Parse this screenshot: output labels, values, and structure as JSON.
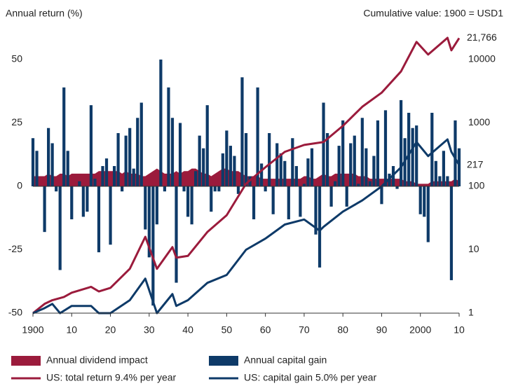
{
  "chart_data": {
    "type": "combo",
    "y_label": "Annual return (%)",
    "y2_label": "Cumulative value: 1900 = USD1",
    "x": [
      1900,
      1901,
      1902,
      1903,
      1904,
      1905,
      1906,
      1907,
      1908,
      1909,
      1910,
      1911,
      1912,
      1913,
      1914,
      1915,
      1916,
      1917,
      1918,
      1919,
      1920,
      1921,
      1922,
      1923,
      1924,
      1925,
      1926,
      1927,
      1928,
      1929,
      1930,
      1931,
      1932,
      1933,
      1934,
      1935,
      1936,
      1937,
      1938,
      1939,
      1940,
      1941,
      1942,
      1943,
      1944,
      1945,
      1946,
      1947,
      1948,
      1949,
      1950,
      1951,
      1952,
      1953,
      1954,
      1955,
      1956,
      1957,
      1958,
      1959,
      1960,
      1961,
      1962,
      1963,
      1964,
      1965,
      1966,
      1967,
      1968,
      1969,
      1970,
      1971,
      1972,
      1973,
      1974,
      1975,
      1976,
      1977,
      1978,
      1979,
      1980,
      1981,
      1982,
      1983,
      1984,
      1985,
      1986,
      1987,
      1988,
      1989,
      1990,
      1991,
      1992,
      1993,
      1994,
      1995,
      1996,
      1997,
      1998,
      1999,
      2000,
      2001,
      2002,
      2003,
      2004,
      2005,
      2006,
      2007,
      2008,
      2009,
      2010
    ],
    "xlim": [
      1900,
      2010
    ],
    "xticks": [
      1900,
      {
        "value": 1910,
        "label": "10"
      },
      {
        "value": 1920,
        "label": "20"
      },
      {
        "value": 1930,
        "label": "30"
      },
      {
        "value": 1940,
        "label": "40"
      },
      {
        "value": 1950,
        "label": "50"
      },
      {
        "value": 1960,
        "label": "60"
      },
      {
        "value": 1970,
        "label": "70"
      },
      {
        "value": 1980,
        "label": "80"
      },
      {
        "value": 1990,
        "label": "90"
      },
      2000,
      {
        "value": 2010,
        "label": "10"
      }
    ],
    "ylim": [
      -50,
      50
    ],
    "yticks": [
      -50,
      -25,
      0,
      25,
      50
    ],
    "y2lim": [
      1,
      10000
    ],
    "y2ticks": [
      1,
      10,
      100,
      1000,
      10000
    ],
    "y2_log": true,
    "series": [
      {
        "name": "Annual dividend impact",
        "type": "area",
        "color": "#9b1b3c",
        "values": [
          4,
          4,
          4,
          4,
          5,
          4,
          4,
          5,
          5,
          4,
          5,
          5,
          5,
          5,
          5,
          5,
          5,
          6,
          6,
          6,
          6,
          6,
          6,
          5,
          6,
          5,
          5,
          5,
          4,
          4,
          5,
          6,
          7,
          6,
          5,
          5,
          5,
          6,
          5,
          6,
          6,
          7,
          7,
          6,
          5,
          5,
          4,
          5,
          6,
          7,
          7,
          6,
          6,
          6,
          5,
          4,
          4,
          4,
          4,
          3,
          3,
          3,
          3,
          3,
          3,
          3,
          3,
          3,
          3,
          3,
          4,
          4,
          3,
          3,
          4,
          5,
          4,
          4,
          5,
          5,
          5,
          5,
          5,
          5,
          4,
          4,
          4,
          3,
          3,
          3,
          3,
          3,
          3,
          3,
          3,
          3,
          2,
          2,
          2,
          1,
          1,
          1,
          1,
          2,
          2,
          2,
          2,
          2,
          2,
          3,
          2
        ]
      },
      {
        "name": "Annual capital gain",
        "type": "bar",
        "color": "#0e3a68",
        "values": [
          19,
          14,
          0,
          -18,
          23,
          17,
          -2,
          -33,
          39,
          14,
          -13,
          0,
          2,
          -12,
          -10,
          32,
          3,
          -26,
          8,
          11,
          -23,
          8,
          21,
          -2,
          20,
          23,
          7,
          27,
          33,
          -17,
          -28,
          -47,
          -15,
          50,
          -2,
          39,
          27,
          -38,
          25,
          -2,
          -12,
          -15,
          6,
          20,
          15,
          32,
          -10,
          -2,
          -2,
          13,
          22,
          16,
          12,
          -3,
          43,
          21,
          4,
          -13,
          39,
          9,
          -2,
          21,
          -11,
          17,
          13,
          10,
          -13,
          19,
          8,
          -12,
          1,
          11,
          15,
          -19,
          -32,
          33,
          21,
          -8,
          2,
          16,
          26,
          -8,
          17,
          20,
          1,
          27,
          15,
          2,
          12,
          26,
          -7,
          30,
          5,
          8,
          -1,
          34,
          19,
          29,
          23,
          24,
          -11,
          -12,
          -22,
          29,
          10,
          4,
          14,
          4,
          -37,
          26,
          15
        ]
      },
      {
        "name": "US: total return 9.4% per year",
        "type": "line",
        "axis": "y2",
        "color": "#9b1b3c",
        "x": [
          1900,
          1903,
          1905,
          1908,
          1910,
          1915,
          1917,
          1920,
          1925,
          1929,
          1932,
          1936,
          1937,
          1940,
          1945,
          1950,
          1955,
          1960,
          1965,
          1970,
          1975,
          1980,
          1985,
          1990,
          1995,
          1999,
          2002,
          2007,
          2008,
          2010
        ],
        "values": [
          1,
          1.4,
          1.6,
          1.8,
          2.1,
          2.6,
          2.2,
          2.5,
          5,
          16,
          5,
          11,
          7.5,
          8,
          19,
          35,
          110,
          200,
          350,
          450,
          500,
          900,
          1800,
          3000,
          6500,
          19000,
          12000,
          22000,
          14000,
          21766
        ],
        "value_labels": [
          null,
          null,
          null,
          null,
          null,
          null,
          null,
          null,
          null,
          null,
          null,
          null,
          null,
          null,
          null,
          null,
          null,
          null,
          null,
          null,
          null,
          null,
          null,
          null,
          null,
          null,
          null,
          null,
          null,
          "21,766"
        ]
      },
      {
        "name": "US: capital gain 5.0% per year",
        "type": "line",
        "axis": "y2",
        "color": "#0e3a68",
        "x": [
          1900,
          1903,
          1905,
          1907,
          1910,
          1915,
          1917,
          1920,
          1925,
          1929,
          1932,
          1936,
          1937,
          1940,
          1945,
          1950,
          1955,
          1960,
          1965,
          1970,
          1974,
          1975,
          1980,
          1985,
          1990,
          1995,
          1999,
          2002,
          2007,
          2008,
          2010
        ],
        "values": [
          1,
          1.2,
          1.4,
          1.0,
          1.3,
          1.3,
          1.0,
          1.0,
          1.6,
          3.5,
          1.0,
          2.0,
          1.3,
          1.6,
          3,
          4,
          10,
          15,
          25,
          30,
          20,
          23,
          40,
          60,
          100,
          200,
          500,
          300,
          550,
          350,
          217
        ]
      }
    ]
  }
}
